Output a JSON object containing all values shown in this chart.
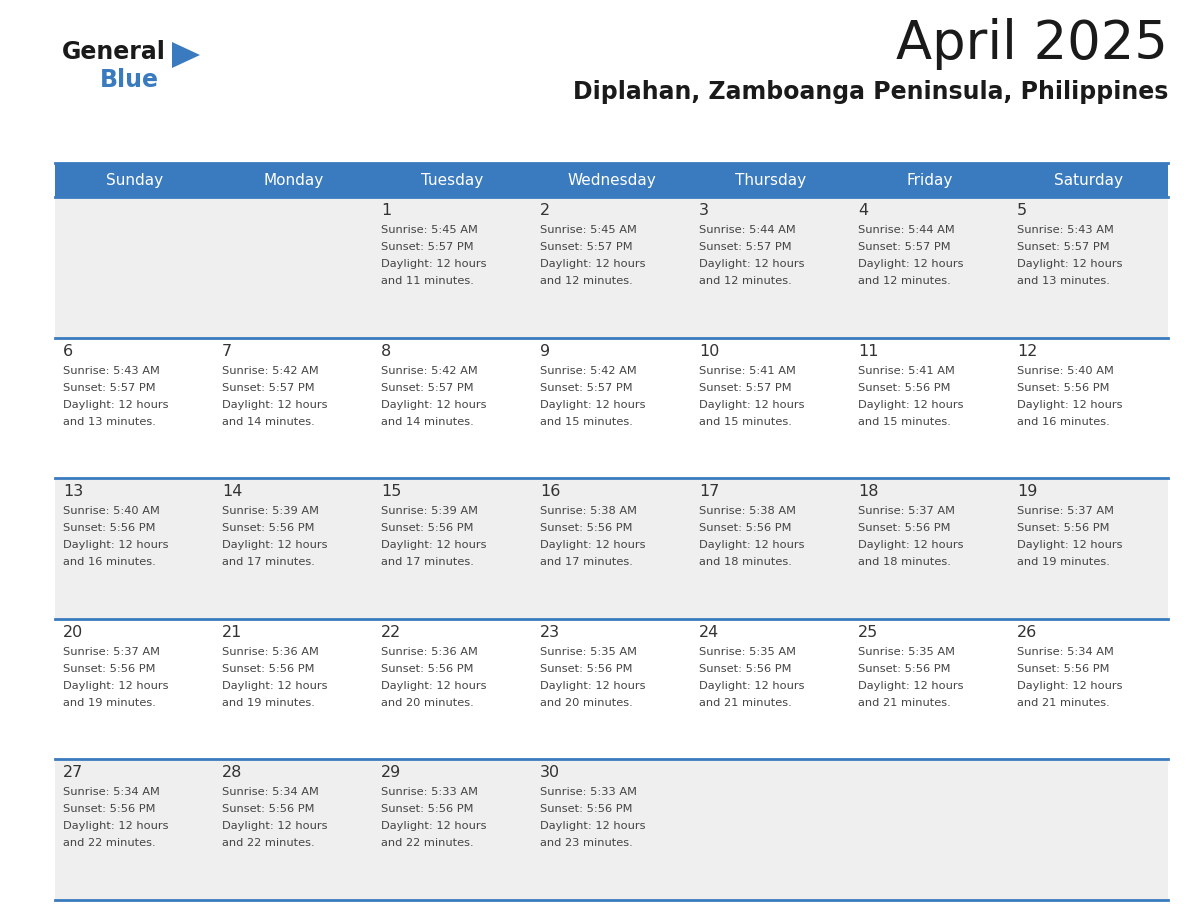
{
  "title": "April 2025",
  "subtitle": "Diplahan, Zamboanga Peninsula, Philippines",
  "header_bg": "#3a7bbf",
  "header_text_color": "#ffffff",
  "cell_bg_odd": "#efefef",
  "cell_bg_even": "#ffffff",
  "day_text_color": "#333333",
  "info_text_color": "#444444",
  "border_color": "#3a7bbf",
  "days_of_week": [
    "Sunday",
    "Monday",
    "Tuesday",
    "Wednesday",
    "Thursday",
    "Friday",
    "Saturday"
  ],
  "weeks": [
    [
      {
        "day": "",
        "sunrise": "",
        "sunset": "",
        "daylight": ""
      },
      {
        "day": "",
        "sunrise": "",
        "sunset": "",
        "daylight": ""
      },
      {
        "day": "1",
        "sunrise": "Sunrise: 5:45 AM",
        "sunset": "Sunset: 5:57 PM",
        "daylight": "Daylight: 12 hours\nand 11 minutes."
      },
      {
        "day": "2",
        "sunrise": "Sunrise: 5:45 AM",
        "sunset": "Sunset: 5:57 PM",
        "daylight": "Daylight: 12 hours\nand 12 minutes."
      },
      {
        "day": "3",
        "sunrise": "Sunrise: 5:44 AM",
        "sunset": "Sunset: 5:57 PM",
        "daylight": "Daylight: 12 hours\nand 12 minutes."
      },
      {
        "day": "4",
        "sunrise": "Sunrise: 5:44 AM",
        "sunset": "Sunset: 5:57 PM",
        "daylight": "Daylight: 12 hours\nand 12 minutes."
      },
      {
        "day": "5",
        "sunrise": "Sunrise: 5:43 AM",
        "sunset": "Sunset: 5:57 PM",
        "daylight": "Daylight: 12 hours\nand 13 minutes."
      }
    ],
    [
      {
        "day": "6",
        "sunrise": "Sunrise: 5:43 AM",
        "sunset": "Sunset: 5:57 PM",
        "daylight": "Daylight: 12 hours\nand 13 minutes."
      },
      {
        "day": "7",
        "sunrise": "Sunrise: 5:42 AM",
        "sunset": "Sunset: 5:57 PM",
        "daylight": "Daylight: 12 hours\nand 14 minutes."
      },
      {
        "day": "8",
        "sunrise": "Sunrise: 5:42 AM",
        "sunset": "Sunset: 5:57 PM",
        "daylight": "Daylight: 12 hours\nand 14 minutes."
      },
      {
        "day": "9",
        "sunrise": "Sunrise: 5:42 AM",
        "sunset": "Sunset: 5:57 PM",
        "daylight": "Daylight: 12 hours\nand 15 minutes."
      },
      {
        "day": "10",
        "sunrise": "Sunrise: 5:41 AM",
        "sunset": "Sunset: 5:57 PM",
        "daylight": "Daylight: 12 hours\nand 15 minutes."
      },
      {
        "day": "11",
        "sunrise": "Sunrise: 5:41 AM",
        "sunset": "Sunset: 5:56 PM",
        "daylight": "Daylight: 12 hours\nand 15 minutes."
      },
      {
        "day": "12",
        "sunrise": "Sunrise: 5:40 AM",
        "sunset": "Sunset: 5:56 PM",
        "daylight": "Daylight: 12 hours\nand 16 minutes."
      }
    ],
    [
      {
        "day": "13",
        "sunrise": "Sunrise: 5:40 AM",
        "sunset": "Sunset: 5:56 PM",
        "daylight": "Daylight: 12 hours\nand 16 minutes."
      },
      {
        "day": "14",
        "sunrise": "Sunrise: 5:39 AM",
        "sunset": "Sunset: 5:56 PM",
        "daylight": "Daylight: 12 hours\nand 17 minutes."
      },
      {
        "day": "15",
        "sunrise": "Sunrise: 5:39 AM",
        "sunset": "Sunset: 5:56 PM",
        "daylight": "Daylight: 12 hours\nand 17 minutes."
      },
      {
        "day": "16",
        "sunrise": "Sunrise: 5:38 AM",
        "sunset": "Sunset: 5:56 PM",
        "daylight": "Daylight: 12 hours\nand 17 minutes."
      },
      {
        "day": "17",
        "sunrise": "Sunrise: 5:38 AM",
        "sunset": "Sunset: 5:56 PM",
        "daylight": "Daylight: 12 hours\nand 18 minutes."
      },
      {
        "day": "18",
        "sunrise": "Sunrise: 5:37 AM",
        "sunset": "Sunset: 5:56 PM",
        "daylight": "Daylight: 12 hours\nand 18 minutes."
      },
      {
        "day": "19",
        "sunrise": "Sunrise: 5:37 AM",
        "sunset": "Sunset: 5:56 PM",
        "daylight": "Daylight: 12 hours\nand 19 minutes."
      }
    ],
    [
      {
        "day": "20",
        "sunrise": "Sunrise: 5:37 AM",
        "sunset": "Sunset: 5:56 PM",
        "daylight": "Daylight: 12 hours\nand 19 minutes."
      },
      {
        "day": "21",
        "sunrise": "Sunrise: 5:36 AM",
        "sunset": "Sunset: 5:56 PM",
        "daylight": "Daylight: 12 hours\nand 19 minutes."
      },
      {
        "day": "22",
        "sunrise": "Sunrise: 5:36 AM",
        "sunset": "Sunset: 5:56 PM",
        "daylight": "Daylight: 12 hours\nand 20 minutes."
      },
      {
        "day": "23",
        "sunrise": "Sunrise: 5:35 AM",
        "sunset": "Sunset: 5:56 PM",
        "daylight": "Daylight: 12 hours\nand 20 minutes."
      },
      {
        "day": "24",
        "sunrise": "Sunrise: 5:35 AM",
        "sunset": "Sunset: 5:56 PM",
        "daylight": "Daylight: 12 hours\nand 21 minutes."
      },
      {
        "day": "25",
        "sunrise": "Sunrise: 5:35 AM",
        "sunset": "Sunset: 5:56 PM",
        "daylight": "Daylight: 12 hours\nand 21 minutes."
      },
      {
        "day": "26",
        "sunrise": "Sunrise: 5:34 AM",
        "sunset": "Sunset: 5:56 PM",
        "daylight": "Daylight: 12 hours\nand 21 minutes."
      }
    ],
    [
      {
        "day": "27",
        "sunrise": "Sunrise: 5:34 AM",
        "sunset": "Sunset: 5:56 PM",
        "daylight": "Daylight: 12 hours\nand 22 minutes."
      },
      {
        "day": "28",
        "sunrise": "Sunrise: 5:34 AM",
        "sunset": "Sunset: 5:56 PM",
        "daylight": "Daylight: 12 hours\nand 22 minutes."
      },
      {
        "day": "29",
        "sunrise": "Sunrise: 5:33 AM",
        "sunset": "Sunset: 5:56 PM",
        "daylight": "Daylight: 12 hours\nand 22 minutes."
      },
      {
        "day": "30",
        "sunrise": "Sunrise: 5:33 AM",
        "sunset": "Sunset: 5:56 PM",
        "daylight": "Daylight: 12 hours\nand 23 minutes."
      },
      {
        "day": "",
        "sunrise": "",
        "sunset": "",
        "daylight": ""
      },
      {
        "day": "",
        "sunrise": "",
        "sunset": "",
        "daylight": ""
      },
      {
        "day": "",
        "sunrise": "",
        "sunset": "",
        "daylight": ""
      }
    ]
  ],
  "logo_text_general": "General",
  "logo_text_blue": "Blue",
  "logo_color_general": "#1a1a1a",
  "logo_color_blue": "#3a7bbf",
  "logo_triangle_color": "#3a7bbf",
  "fig_width": 11.88,
  "fig_height": 9.18,
  "dpi": 100
}
